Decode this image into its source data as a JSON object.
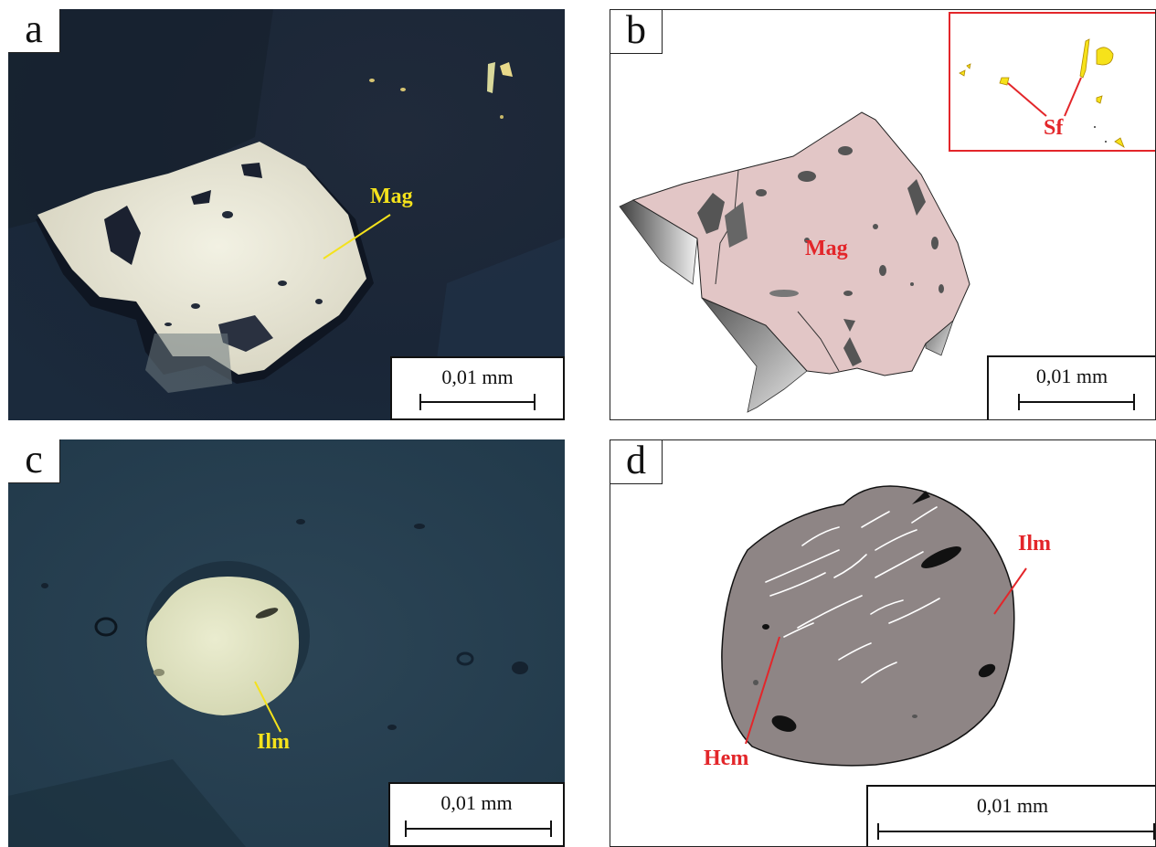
{
  "panels": [
    {
      "letter": "a",
      "scale": "0,01 mm",
      "labels": {
        "mineral": "Mag"
      }
    },
    {
      "letter": "b",
      "scale": "0,01 mm",
      "labels": {
        "mineral": "Mag",
        "inset": "Sf"
      }
    },
    {
      "letter": "c",
      "scale": "0,01 mm",
      "labels": {
        "mineral": "Ilm"
      }
    },
    {
      "letter": "d",
      "scale": "0,01 mm",
      "labels": {
        "mineral": "Ilm",
        "lamellae": "Hem"
      }
    }
  ],
  "colors": {
    "photo_background": "#1c2c42",
    "photo_grain": "#e8e6d2",
    "drawing_magnetite": "#e2c6c6",
    "drawing_ilmenite": "#8e8585",
    "label_photo": "#f4e21c",
    "label_drawing": "#e3262a",
    "sulfide": "#f6e21a"
  }
}
